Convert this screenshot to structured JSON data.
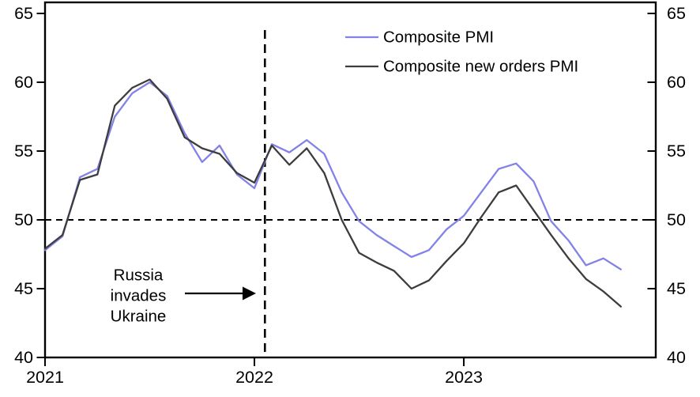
{
  "chart_data": {
    "type": "line",
    "title": "",
    "x_axis": {
      "tick_labels": [
        "2021",
        "2022",
        "2023"
      ],
      "tick_month_positions": [
        0,
        12,
        24
      ],
      "start_month": "2021-01",
      "n_months": 34
    },
    "y_axis": {
      "ticks": [
        40,
        45,
        50,
        55,
        60,
        65
      ],
      "range": [
        40,
        65
      ],
      "sides": "both"
    },
    "series": [
      {
        "name": "Composite PMI",
        "color": "#8282e8",
        "values": [
          47.8,
          48.8,
          53.1,
          53.7,
          57.5,
          59.2,
          60.0,
          59.0,
          56.3,
          54.2,
          55.4,
          53.3,
          52.3,
          55.5,
          54.9,
          55.8,
          54.8,
          52.0,
          49.9,
          48.9,
          48.1,
          47.3,
          47.8,
          49.3,
          50.3,
          52.0,
          53.7,
          54.1,
          52.8,
          49.9,
          48.5,
          46.7,
          47.2,
          46.4
        ]
      },
      {
        "name": "Composite new orders PMI",
        "color": "#3d3d3d",
        "values": [
          47.9,
          48.9,
          52.9,
          53.3,
          58.3,
          59.6,
          60.2,
          58.8,
          56.0,
          55.2,
          54.8,
          53.4,
          52.7,
          55.4,
          54.0,
          55.2,
          53.4,
          50.0,
          47.6,
          46.9,
          46.3,
          45.0,
          45.6,
          47.0,
          48.3,
          50.2,
          52.0,
          52.5,
          50.7,
          48.9,
          47.2,
          45.7,
          44.8,
          43.7
        ]
      }
    ],
    "reference_line": {
      "value": 50,
      "style": "dashed",
      "color": "#000000"
    },
    "event_line": {
      "month_index": 12.6,
      "style": "dashed",
      "color": "#000000"
    },
    "annotation": {
      "lines": [
        "Russia",
        "invades",
        "Ukraine"
      ],
      "arrow": "right"
    },
    "legend_position": "top-right-inside",
    "grid": false,
    "frame_color": "#000000"
  }
}
